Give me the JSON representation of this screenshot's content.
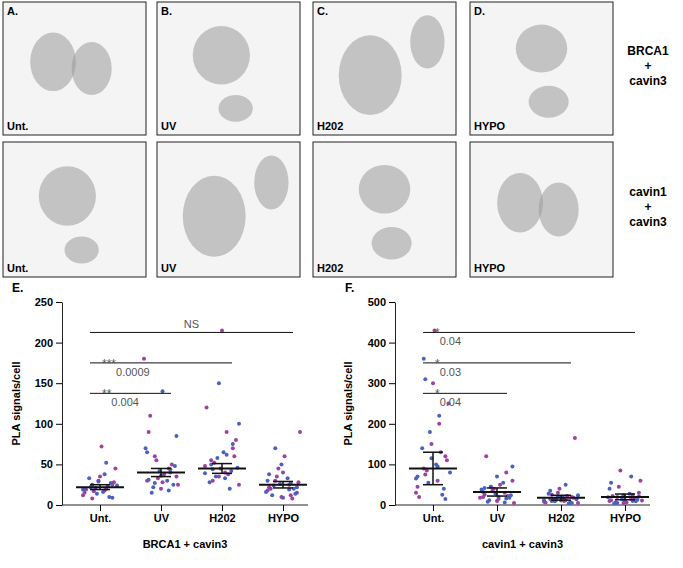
{
  "image_panels": {
    "columns": [
      {
        "letter": "A.",
        "treatment": "Unt."
      },
      {
        "letter": "B.",
        "treatment": "UV"
      },
      {
        "letter": "C.",
        "treatment": "H202"
      },
      {
        "letter": "D.",
        "treatment": "HYPO"
      }
    ],
    "rows": [
      {
        "label_lines": [
          "BRCA1",
          "+",
          "cavin3"
        ]
      },
      {
        "label_lines": [
          "cavin1",
          "+",
          "cavin3"
        ]
      }
    ]
  },
  "chart_data": [
    {
      "type": "scatter",
      "title": "E.",
      "x_label": "BRCA1 + cavin3",
      "y_label": "PLA signals/cell",
      "categories": [
        "Unt.",
        "UV",
        "H202",
        "HYPO"
      ],
      "ylim": [
        0,
        250
      ],
      "yticks": [
        0,
        50,
        100,
        150,
        200,
        250
      ],
      "series": [
        {
          "color": "#a0409f",
          "values": [
            [
              12,
              18,
              22,
              25,
              30,
              15,
              20,
              8,
              28,
              35,
              19,
              23,
              17,
              45,
              72
            ],
            [
              20,
              30,
              45,
              60,
              35,
              28,
              90,
              40,
              55,
              25,
              38,
              110,
              50,
              33,
              180
            ],
            [
              25,
              40,
              55,
              70,
              35,
              48,
              90,
              30,
              60,
              45,
              120,
              38,
              52,
              80,
              215
            ],
            [
              10,
              18,
              25,
              30,
              15,
              40,
              22,
              12,
              35,
              28,
              60,
              20,
              8,
              45,
              90
            ]
          ]
        },
        {
          "color": "#4a62bf",
          "values": [
            [
              10,
              21,
              24,
              16,
              33,
              27,
              14,
              19,
              38,
              22,
              9,
              29,
              20,
              52,
              25
            ],
            [
              15,
              25,
              42,
              70,
              30,
              22,
              48,
              36,
              65,
              18,
              27,
              85,
              140,
              31,
              44
            ],
            [
              20,
              35,
              46,
              65,
              28,
              42,
              58,
              100,
              33,
              50,
              75,
              150,
              39,
              62,
              44
            ],
            [
              12,
              20,
              26,
              16,
              33,
              24,
              14,
              50,
              30,
              19,
              70,
              22,
              9,
              38,
              27
            ]
          ]
        }
      ],
      "means": [
        22,
        40,
        45,
        25
      ],
      "errors": [
        3,
        5,
        6,
        4
      ],
      "annotations": [
        {
          "from": "Unt.",
          "to": "UV",
          "stars": "**",
          "p": "0.004"
        },
        {
          "from": "Unt.",
          "to": "H202",
          "stars": "***",
          "p": "0.0009"
        },
        {
          "from": "Unt.",
          "to": "HYPO",
          "stars": "NS"
        }
      ]
    },
    {
      "type": "scatter",
      "title": "F.",
      "x_label": "cavin1 + cavin3",
      "y_label": "PLA signals/cell",
      "categories": [
        "Unt.",
        "UV",
        "H202",
        "HYPO"
      ],
      "ylim": [
        0,
        500
      ],
      "yticks": [
        0,
        100,
        200,
        300,
        400,
        500
      ],
      "series": [
        {
          "color": "#a0409f",
          "values": [
            [
              30,
              60,
              90,
              120,
              150,
              45,
              200,
              75,
              110,
              300,
              20,
              130,
              85,
              250,
              430
            ],
            [
              10,
              20,
              30,
              45,
              60,
              15,
              25,
              80,
              35,
              5,
              50,
              120,
              22,
              40,
              18
            ],
            [
              5,
              10,
              15,
              20,
              30,
              8,
              12,
              25,
              18,
              40,
              6,
              22,
              14,
              165,
              11
            ],
            [
              5,
              10,
              15,
              20,
              30,
              8,
              12,
              25,
              45,
              60,
              6,
              22,
              14,
              85,
              11
            ]
          ]
        },
        {
          "color": "#4a62bf",
          "values": [
            [
              25,
              55,
              80,
              100,
              140,
              40,
              180,
              65,
              95,
              360,
              15,
              115,
              70,
              220,
              310
            ],
            [
              8,
              18,
              28,
              38,
              55,
              12,
              24,
              70,
              32,
              6,
              45,
              95,
              20,
              42,
              16
            ],
            [
              4,
              9,
              14,
              19,
              28,
              7,
              13,
              24,
              16,
              35,
              5,
              21,
              12,
              50,
              10
            ],
            [
              4,
              9,
              14,
              19,
              28,
              7,
              13,
              24,
              40,
              70,
              5,
              21,
              12,
              55,
              10
            ]
          ]
        }
      ],
      "means": [
        90,
        32,
        18,
        20
      ],
      "errors": [
        40,
        10,
        6,
        7
      ],
      "annotations": [
        {
          "from": "Unt.",
          "to": "UV",
          "stars": "*",
          "p": "0.04"
        },
        {
          "from": "Unt.",
          "to": "H202",
          "stars": "*",
          "p": "0.03"
        },
        {
          "from": "Unt.",
          "to": "HYPO",
          "stars": "*",
          "p": "0.04"
        }
      ]
    }
  ]
}
